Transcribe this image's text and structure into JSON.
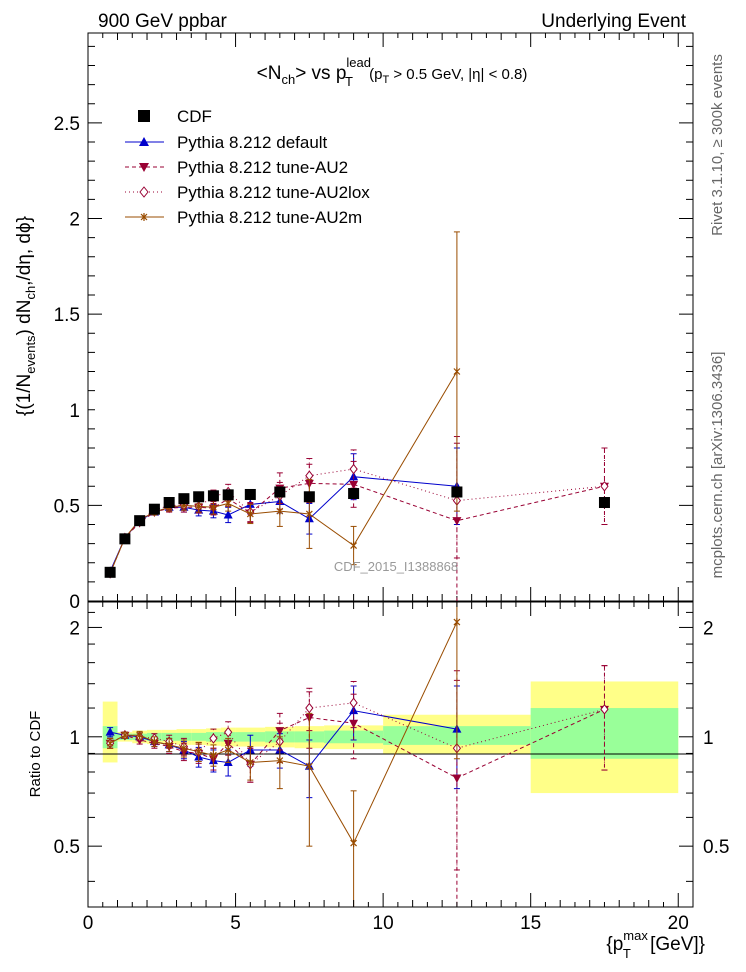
{
  "header": {
    "left": "900 GeV ppbar",
    "right": "Underlying Event"
  },
  "side_labels": {
    "top": "Rivet 3.1.10, ≥ 300k events",
    "bottom": "mcplots.cern.ch [arXiv:1306.3436]"
  },
  "watermark": "CDF_2015_I1388868",
  "chart_data": [
    {
      "name": "main",
      "type": "line",
      "title_parts": {
        "n": "<N",
        "n_sub": "ch",
        "mid": "> vs p",
        "p_sub": "T",
        "p_sup": "lead",
        "cut_open": " (p",
        "cut_sub": "T",
        "cut_rest": " > 0.5 GeV, |η| < 0.8)"
      },
      "ylabel_parts": {
        "a": "{(1/N",
        "a_sub": "events",
        "b": ") dN",
        "b_sub": "ch",
        "c": ",/dη, dϕ}"
      },
      "xlim": [
        0,
        20.5
      ],
      "ylim": [
        0,
        2.97
      ],
      "xticks": [
        0,
        5,
        10,
        15,
        20
      ],
      "yticks": [
        {
          "v": 0.5,
          "label": "0.5"
        },
        {
          "v": 1.0,
          "label": "1"
        },
        {
          "v": 1.5,
          "label": "1.5"
        },
        {
          "v": 2.0,
          "label": "2"
        },
        {
          "v": 2.5,
          "label": "2.5"
        }
      ],
      "ytick_zero_label": "0",
      "data_series": {
        "name": "CDF",
        "x": [
          0.75,
          1.25,
          1.75,
          2.25,
          2.75,
          3.25,
          3.75,
          4.25,
          4.75,
          5.5,
          6.5,
          7.5,
          9.0,
          12.5,
          17.5
        ],
        "y": [
          0.15,
          0.325,
          0.42,
          0.48,
          0.515,
          0.535,
          0.545,
          0.55,
          0.555,
          0.557,
          0.57,
          0.545,
          0.562,
          0.57,
          0.515
        ],
        "yerr": [
          0.005,
          0.005,
          0.005,
          0.006,
          0.006,
          0.006,
          0.007,
          0.007,
          0.008,
          0.009,
          0.012,
          0.015,
          0.02,
          0.03,
          0.03
        ]
      },
      "series": [
        {
          "name": "Pythia 8.212 default",
          "color": "#0000cc",
          "marker": "triangle-up",
          "dash": "solid",
          "x": [
            0.75,
            1.25,
            1.75,
            2.25,
            2.75,
            3.25,
            3.75,
            4.25,
            4.75,
            5.5,
            6.5,
            7.5,
            9.0,
            12.5
          ],
          "y": [
            0.155,
            0.33,
            0.42,
            0.465,
            0.49,
            0.49,
            0.475,
            0.47,
            0.45,
            0.505,
            0.52,
            0.43,
            0.65,
            0.6
          ],
          "yerr": [
            0.005,
            0.008,
            0.01,
            0.015,
            0.02,
            0.025,
            0.03,
            0.035,
            0.04,
            0.05,
            0.06,
            0.08,
            0.12,
            0.2
          ]
        },
        {
          "name": "Pythia 8.212 tune-AU2",
          "color": "#990033",
          "marker": "triangle-down",
          "dash": "4,3",
          "x": [
            0.75,
            1.25,
            1.75,
            2.25,
            2.75,
            3.25,
            3.75,
            4.25,
            4.75,
            5.5,
            6.5,
            7.5,
            9.0,
            12.5,
            17.5
          ],
          "y": [
            0.145,
            0.33,
            0.41,
            0.465,
            0.485,
            0.49,
            0.49,
            0.485,
            0.535,
            0.46,
            0.59,
            0.615,
            0.61,
            0.42,
            0.6
          ],
          "yerr": [
            0.005,
            0.008,
            0.01,
            0.015,
            0.02,
            0.025,
            0.03,
            0.035,
            0.04,
            0.05,
            0.08,
            0.1,
            0.12,
            0.44,
            0.2
          ]
        },
        {
          "name": "Pythia 8.212 tune-AU2lox",
          "color": "#990033",
          "marker": "diamond-open",
          "dash": "1,3",
          "x": [
            0.75,
            1.25,
            1.75,
            2.25,
            2.75,
            3.25,
            3.75,
            4.25,
            4.75,
            5.5,
            6.5,
            7.5,
            9.0,
            12.5,
            17.5
          ],
          "y": [
            0.145,
            0.33,
            0.42,
            0.475,
            0.5,
            0.5,
            0.495,
            0.545,
            0.57,
            0.465,
            0.55,
            0.655,
            0.69,
            0.525,
            0.6
          ],
          "yerr": [
            0.005,
            0.008,
            0.01,
            0.015,
            0.02,
            0.025,
            0.03,
            0.035,
            0.04,
            0.05,
            0.07,
            0.09,
            0.1,
            0.3,
            0.2
          ]
        },
        {
          "name": "Pythia 8.212 tune-AU2m",
          "color": "#994c00",
          "marker": "star",
          "dash": "solid",
          "x": [
            0.75,
            1.25,
            1.75,
            2.25,
            2.75,
            3.25,
            3.75,
            4.25,
            4.75,
            5.5,
            6.5,
            7.5,
            9.0,
            12.5
          ],
          "y": [
            0.145,
            0.33,
            0.425,
            0.465,
            0.49,
            0.5,
            0.495,
            0.49,
            0.51,
            0.455,
            0.47,
            0.455,
            0.29,
            1.2
          ],
          "yerr": [
            0.005,
            0.008,
            0.01,
            0.015,
            0.02,
            0.025,
            0.03,
            0.035,
            0.04,
            0.05,
            0.08,
            0.18,
            0.1,
            0.73
          ]
        }
      ]
    },
    {
      "name": "ratio",
      "type": "line",
      "ylabel": "Ratio to CDF",
      "xlabel_parts": {
        "a": "{p",
        "a_sub": "T",
        "a_sup": "max",
        "b": " [GeV]}"
      },
      "xlim": [
        0,
        20.5
      ],
      "ylim": [
        0.34,
        2.35
      ],
      "reference": 1.0,
      "xticks": [
        {
          "v": 0,
          "label": "0"
        },
        {
          "v": 5,
          "label": "5"
        },
        {
          "v": 10,
          "label": "10"
        },
        {
          "v": 15,
          "label": "15"
        },
        {
          "v": 20,
          "label": "20"
        }
      ],
      "yticks": [
        {
          "v": 0.5,
          "label": "0.5"
        },
        {
          "v": 1.0,
          "label": "1"
        },
        {
          "v": 2.0,
          "label": "2"
        }
      ],
      "bands": [
        {
          "x0": 0.5,
          "x1": 1.0,
          "y1": [
            0.93,
            1.07
          ],
          "y2": [
            0.85,
            1.25
          ]
        },
        {
          "x0": 1.0,
          "x1": 1.5,
          "y1": [
            0.98,
            1.02
          ],
          "y2": [
            0.97,
            1.03
          ]
        },
        {
          "x0": 1.5,
          "x1": 2.0,
          "y1": [
            0.98,
            1.02
          ],
          "y2": [
            0.96,
            1.04
          ]
        },
        {
          "x0": 2.0,
          "x1": 2.5,
          "y1": [
            0.975,
            1.025
          ],
          "y2": [
            0.955,
            1.045
          ]
        },
        {
          "x0": 2.5,
          "x1": 3.0,
          "y1": [
            0.975,
            1.025
          ],
          "y2": [
            0.955,
            1.045
          ]
        },
        {
          "x0": 3.0,
          "x1": 3.5,
          "y1": [
            0.975,
            1.025
          ],
          "y2": [
            0.95,
            1.05
          ]
        },
        {
          "x0": 3.5,
          "x1": 4.0,
          "y1": [
            0.975,
            1.025
          ],
          "y2": [
            0.95,
            1.05
          ]
        },
        {
          "x0": 4.0,
          "x1": 4.5,
          "y1": [
            0.97,
            1.03
          ],
          "y2": [
            0.945,
            1.055
          ]
        },
        {
          "x0": 4.5,
          "x1": 5.0,
          "y1": [
            0.97,
            1.03
          ],
          "y2": [
            0.94,
            1.06
          ]
        },
        {
          "x0": 5.0,
          "x1": 6.0,
          "y1": [
            0.97,
            1.03
          ],
          "y2": [
            0.94,
            1.06
          ]
        },
        {
          "x0": 6.0,
          "x1": 7.0,
          "y1": [
            0.965,
            1.035
          ],
          "y2": [
            0.935,
            1.065
          ]
        },
        {
          "x0": 7.0,
          "x1": 8.0,
          "y1": [
            0.965,
            1.035
          ],
          "y2": [
            0.93,
            1.07
          ]
        },
        {
          "x0": 8.0,
          "x1": 10.0,
          "y1": [
            0.96,
            1.04
          ],
          "y2": [
            0.925,
            1.075
          ]
        },
        {
          "x0": 10.0,
          "x1": 15.0,
          "y1": [
            0.95,
            1.07
          ],
          "y2": [
            0.9,
            1.15
          ]
        },
        {
          "x0": 15.0,
          "x1": 20.0,
          "y1": [
            0.87,
            1.2
          ],
          "y2": [
            0.7,
            1.42
          ]
        }
      ],
      "series": [
        {
          "name": "Pythia 8.212 default",
          "y": [
            1.03,
            1.01,
            1.0,
            0.97,
            0.95,
            0.92,
            0.88,
            0.86,
            0.85,
            0.92,
            0.92,
            0.83,
            1.18,
            1.05
          ],
          "yerr": [
            0.03,
            0.02,
            0.025,
            0.03,
            0.04,
            0.05,
            0.055,
            0.06,
            0.07,
            0.09,
            0.1,
            0.15,
            0.2,
            0.33
          ]
        },
        {
          "name": "Pythia 8.212 tune-AU2",
          "y": [
            0.96,
            1.01,
            0.98,
            0.96,
            0.94,
            0.91,
            0.9,
            0.87,
            0.96,
            0.84,
            1.04,
            1.13,
            1.09,
            0.77,
            1.19
          ],
          "yerr": [
            0.03,
            0.02,
            0.025,
            0.03,
            0.04,
            0.05,
            0.055,
            0.06,
            0.07,
            0.09,
            0.12,
            0.2,
            0.22,
            0.75,
            0.38
          ]
        },
        {
          "name": "Pythia 8.212 tune-AU2lox",
          "y": [
            0.96,
            1.01,
            1.0,
            0.99,
            0.97,
            0.94,
            0.91,
            0.99,
            1.03,
            0.84,
            0.97,
            1.2,
            1.24,
            0.93,
            1.19
          ],
          "yerr": [
            0.03,
            0.02,
            0.025,
            0.03,
            0.04,
            0.05,
            0.055,
            0.06,
            0.07,
            0.09,
            0.12,
            0.16,
            0.18,
            0.5,
            0.38
          ]
        },
        {
          "name": "Pythia 8.212 tune-AU2m",
          "y": [
            0.96,
            1.01,
            1.01,
            0.97,
            0.95,
            0.93,
            0.91,
            0.89,
            0.92,
            0.85,
            0.86,
            0.83,
            0.51,
            2.07
          ],
          "yerr": [
            0.03,
            0.02,
            0.025,
            0.03,
            0.04,
            0.05,
            0.055,
            0.06,
            0.07,
            0.09,
            0.14,
            0.33,
            0.2,
            1.2
          ]
        }
      ]
    }
  ]
}
